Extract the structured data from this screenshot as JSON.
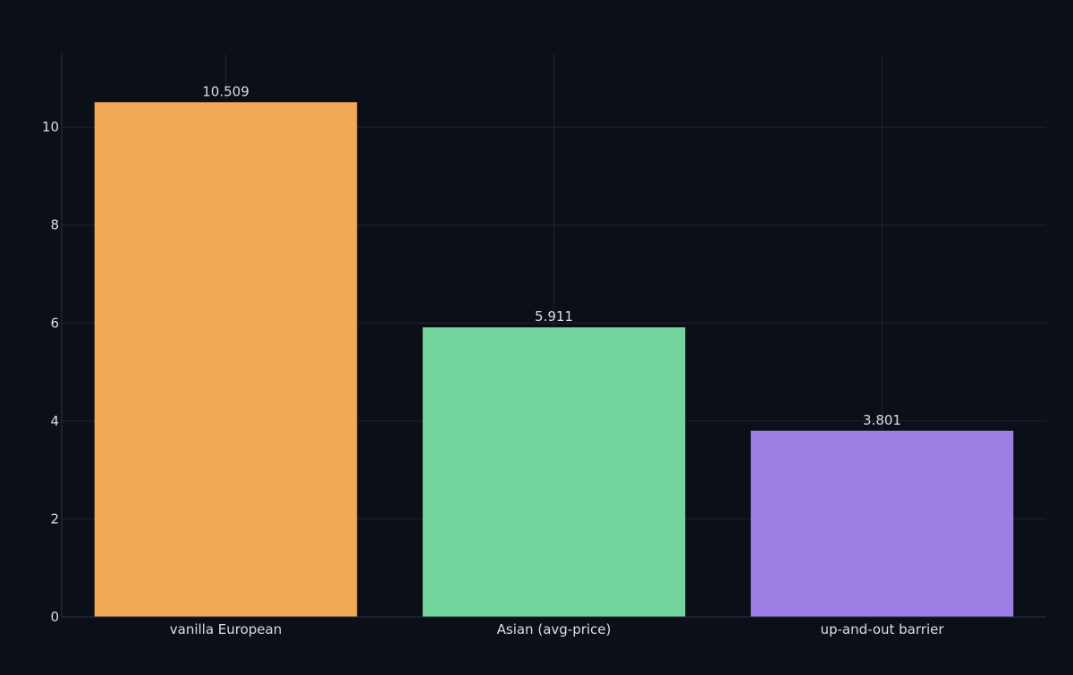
{
  "chart_data": {
    "type": "bar",
    "categories": [
      "vanilla European",
      "Asian (avg-price)",
      "up-and-out barrier"
    ],
    "values": [
      10.509,
      5.911,
      3.801
    ],
    "data_labels": [
      "10.509",
      "5.911",
      "3.801"
    ],
    "title": "",
    "xlabel": "",
    "ylabel": "",
    "ylim": [
      0,
      11.5
    ],
    "yticks": [
      0,
      2,
      4,
      6,
      8,
      10
    ],
    "grid": true,
    "colors": {
      "background": "#0b0f17",
      "grid": "#1e2433",
      "axis": "#2b3245",
      "text": "#d9dde6",
      "bars": [
        "#f0a957",
        "#72d49c",
        "#9d80e6"
      ]
    }
  }
}
